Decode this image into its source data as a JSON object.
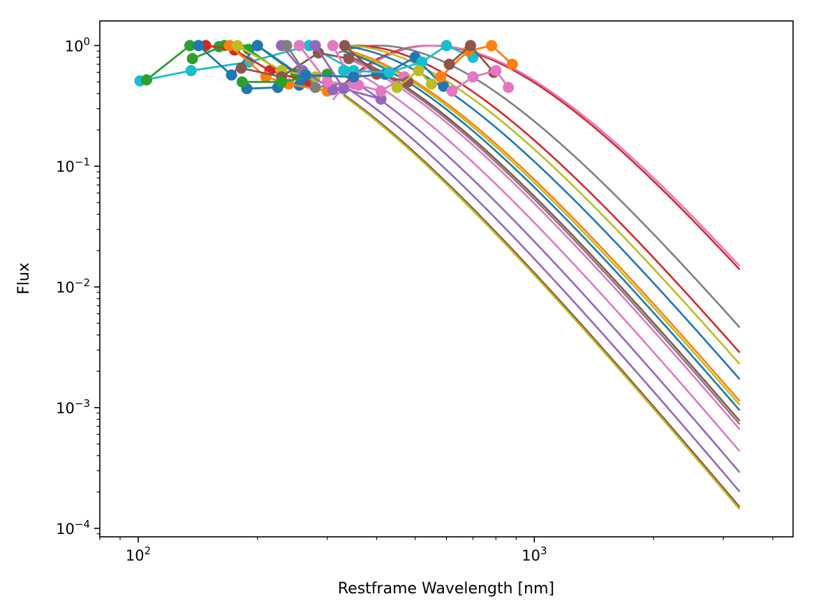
{
  "chart_data": {
    "type": "line",
    "title": "",
    "xlabel": "Restframe Wavelength [nm]",
    "ylabel": "Flux",
    "xscale": "log",
    "yscale": "log",
    "xlim": [
      80,
      4500
    ],
    "ylim": [
      8.5e-05,
      1.6
    ],
    "grid": false,
    "legend": "none",
    "x_ticks": [
      {
        "value": 100,
        "base": "10",
        "exp": "2"
      },
      {
        "value": 1000,
        "base": "10",
        "exp": "3"
      }
    ],
    "y_ticks": [
      {
        "value": 1,
        "base": "10",
        "exp": "0"
      },
      {
        "value": 0.1,
        "base": "10",
        "exp": "−1"
      },
      {
        "value": 0.01,
        "base": "10",
        "exp": "−2"
      },
      {
        "value": 0.001,
        "base": "10",
        "exp": "−3"
      },
      {
        "value": 0.0001,
        "base": "10",
        "exp": "−4"
      }
    ],
    "curve_colors": [
      "#1f77b4",
      "#ff7f0e",
      "#2ca02c",
      "#d62728",
      "#9467bd",
      "#8c564b",
      "#e377c2",
      "#7f7f7f",
      "#bcbd22",
      "#17becf"
    ],
    "blackbody_curves": [
      {
        "color": "#d62728",
        "temperature_k": 5300,
        "x_start": 320,
        "x_end": 3300
      },
      {
        "color": "#e377c2",
        "temperature_k": 5200,
        "x_start": 310,
        "x_end": 3300
      },
      {
        "color": "#7f7f7f",
        "temperature_k": 7200,
        "x_start": 320,
        "x_end": 3300
      },
      {
        "color": "#d62728",
        "temperature_k": 8200,
        "x_start": 330,
        "x_end": 3300
      },
      {
        "color": "#bcbd22",
        "temperature_k": 8700,
        "x_start": 330,
        "x_end": 3300
      },
      {
        "color": "#1f77b4",
        "temperature_k": 9400,
        "x_start": 330,
        "x_end": 3300
      },
      {
        "color": "#ff7f0e",
        "temperature_k": 10500,
        "x_start": 330,
        "x_end": 3300
      },
      {
        "color": "#bcbd22",
        "temperature_k": 10700,
        "x_start": 330,
        "x_end": 3300
      },
      {
        "color": "#1f77b4",
        "temperature_k": 11000,
        "x_start": 330,
        "x_end": 3300
      },
      {
        "color": "#8c564b",
        "temperature_k": 11600,
        "x_start": 330,
        "x_end": 3300
      },
      {
        "color": "#7f7f7f",
        "temperature_k": 11800,
        "x_start": 330,
        "x_end": 3300
      },
      {
        "color": "#e377c2",
        "temperature_k": 12100,
        "x_start": 330,
        "x_end": 3300
      },
      {
        "color": "#e377c2",
        "temperature_k": 13500,
        "x_start": 330,
        "x_end": 3300
      },
      {
        "color": "#9467bd",
        "temperature_k": 15000,
        "x_start": 330,
        "x_end": 3300
      },
      {
        "color": "#9467bd",
        "temperature_k": 16500,
        "x_start": 330,
        "x_end": 3300
      },
      {
        "color": "#8c564b",
        "temperature_k": 17800,
        "x_start": 330,
        "x_end": 3300
      },
      {
        "color": "#bcbd22",
        "temperature_k": 18000,
        "x_start": 330,
        "x_end": 3300
      }
    ],
    "photometry_series": [
      {
        "color": "#17becf",
        "points": [
          [
            101,
            0.51
          ],
          [
            136,
            0.62
          ],
          [
            190,
            0.73
          ],
          [
            270,
            1.0
          ],
          [
            350,
            0.62
          ]
        ]
      },
      {
        "color": "#2ca02c",
        "points": [
          [
            105,
            0.52
          ],
          [
            135,
            1.0
          ],
          [
            160,
            0.98
          ],
          [
            190,
            0.93
          ],
          [
            230,
            0.6
          ]
        ]
      },
      {
        "color": "#2ca02c",
        "points": [
          [
            137,
            0.78
          ],
          [
            165,
            1.0
          ],
          [
            200,
            1.0
          ],
          [
            250,
            0.58
          ]
        ]
      },
      {
        "color": "#d62728",
        "points": [
          [
            148,
            1.0
          ],
          [
            175,
            0.92
          ],
          [
            215,
            0.62
          ],
          [
            270,
            0.5
          ]
        ]
      },
      {
        "color": "#1f77b4",
        "points": [
          [
            142,
            1.0
          ],
          [
            172,
            0.57
          ],
          [
            200,
            1.0
          ],
          [
            260,
            0.55
          ]
        ]
      },
      {
        "color": "#1f77b4",
        "points": [
          [
            188,
            0.44
          ],
          [
            225,
            0.45
          ],
          [
            255,
            0.47
          ]
        ]
      },
      {
        "color": "#ff7f0e",
        "points": [
          [
            170,
            1.0
          ],
          [
            210,
            0.55
          ],
          [
            240,
            0.48
          ],
          [
            300,
            0.42
          ]
        ]
      },
      {
        "color": "#bcbd22",
        "points": [
          [
            178,
            1.0
          ],
          [
            230,
            0.62
          ],
          [
            280,
            0.55
          ]
        ]
      },
      {
        "color": "#8c564b",
        "points": [
          [
            182,
            0.65
          ],
          [
            230,
            0.55
          ],
          [
            285,
            0.87
          ],
          [
            340,
            0.78
          ]
        ]
      },
      {
        "color": "#2ca02c",
        "points": [
          [
            183,
            0.5
          ],
          [
            230,
            0.5
          ],
          [
            300,
            0.58
          ]
        ]
      },
      {
        "color": "#9467bd",
        "points": [
          [
            230,
            1.0
          ],
          [
            260,
            0.62
          ],
          [
            310,
            0.43
          ]
        ]
      },
      {
        "color": "#7f7f7f",
        "points": [
          [
            237,
            1.0
          ],
          [
            280,
            0.45
          ],
          [
            350,
            0.5
          ]
        ]
      },
      {
        "color": "#e377c2",
        "points": [
          [
            255,
            1.0
          ],
          [
            300,
            0.5
          ],
          [
            360,
            0.47
          ]
        ]
      },
      {
        "color": "#9467bd",
        "points": [
          [
            280,
            1.0
          ],
          [
            330,
            0.44
          ],
          [
            410,
            0.36
          ]
        ]
      },
      {
        "color": "#e377c2",
        "points": [
          [
            310,
            1.0
          ],
          [
            350,
            0.48
          ],
          [
            410,
            0.42
          ],
          [
            470,
            0.55
          ]
        ]
      },
      {
        "color": "#8c564b",
        "points": [
          [
            332,
            1.0
          ],
          [
            400,
            0.58
          ],
          [
            480,
            0.5
          ]
        ]
      },
      {
        "color": "#1f77b4",
        "points": [
          [
            265,
            0.57
          ],
          [
            350,
            0.55
          ],
          [
            420,
            0.58
          ],
          [
            500,
            0.8
          ],
          [
            590,
            0.46
          ]
        ]
      },
      {
        "color": "#17becf",
        "points": [
          [
            330,
            0.62
          ],
          [
            430,
            0.6
          ],
          [
            520,
            0.73
          ],
          [
            600,
            1.0
          ],
          [
            700,
            0.8
          ]
        ]
      },
      {
        "color": "#ff7f0e",
        "points": [
          [
            580,
            0.55
          ],
          [
            680,
            0.9
          ],
          [
            780,
            1.0
          ],
          [
            880,
            0.7
          ]
        ]
      },
      {
        "color": "#8c564b",
        "points": [
          [
            610,
            0.7
          ],
          [
            690,
            1.0
          ],
          [
            790,
            0.6
          ]
        ]
      },
      {
        "color": "#e377c2",
        "points": [
          [
            620,
            0.42
          ],
          [
            700,
            0.55
          ],
          [
            800,
            0.62
          ],
          [
            860,
            0.45
          ]
        ]
      },
      {
        "color": "#bcbd22",
        "points": [
          [
            450,
            0.45
          ],
          [
            510,
            0.62
          ],
          [
            550,
            0.48
          ]
        ]
      }
    ]
  }
}
